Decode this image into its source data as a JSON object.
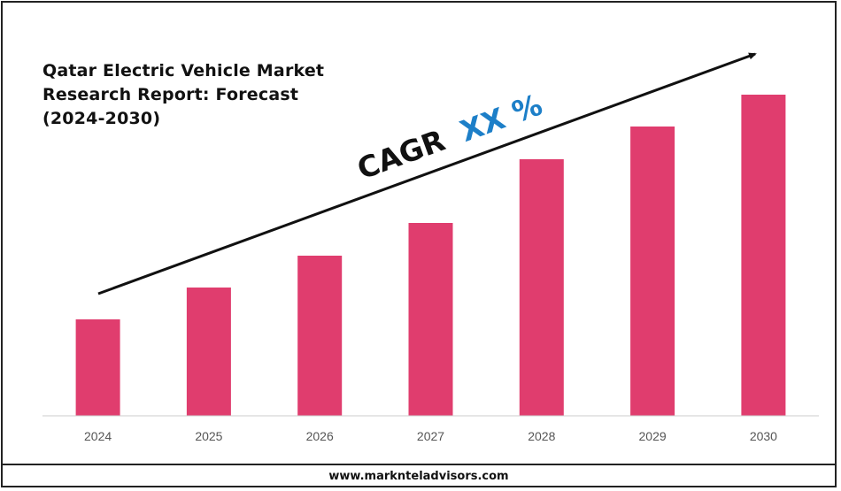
{
  "title_lines": [
    "Qatar Electric Vehicle Market",
    "Research Report: Forecast",
    "(2024-2030)"
  ],
  "annotation": {
    "cagr_label": "CAGR",
    "cagr_value": "XX %"
  },
  "footer": {
    "url": "www.marknteladvisors.com"
  },
  "colors": {
    "bar": "#e03d6e",
    "accent": "#1d7fc8",
    "text": "#111111",
    "axis": "#cccccc"
  },
  "chart_data": {
    "type": "bar",
    "categories": [
      "2024",
      "2025",
      "2026",
      "2027",
      "2028",
      "2029",
      "2030"
    ],
    "values": [
      109,
      145,
      181,
      218,
      290,
      327,
      363
    ],
    "title": "Qatar Electric Vehicle Market Research Report: Forecast (2024-2030)",
    "xlabel": "",
    "ylabel": "",
    "ylim": [
      0,
      400
    ],
    "grid": false,
    "legend": "none",
    "annotations": [
      "CAGR XX %"
    ]
  }
}
